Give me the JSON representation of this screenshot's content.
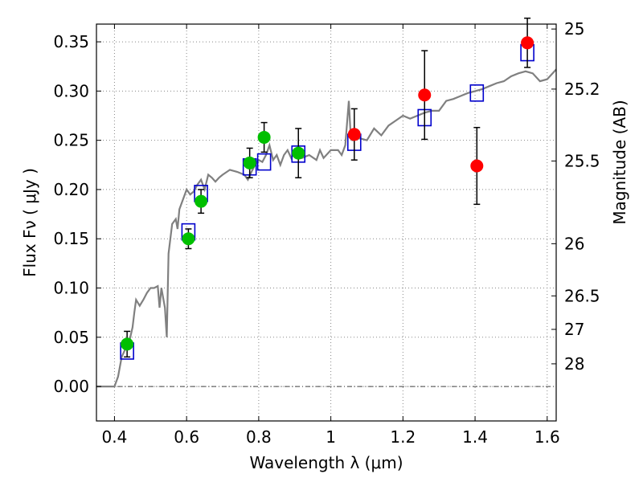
{
  "chart_data": {
    "type": "scatter",
    "xlabel": "Wavelength  λ (μm)",
    "ylabel": "Flux  Fν  ( μJy )",
    "y2label": "Magnitude (AB)",
    "xlim": [
      0.35,
      1.625
    ],
    "ylim": [
      -0.035,
      0.368
    ],
    "grid": true,
    "x_ticks": [
      0.4,
      0.6,
      0.8,
      1.0,
      1.2,
      1.4,
      1.6
    ],
    "x_tick_labels": [
      "0.4",
      "0.6",
      "0.8",
      "1",
      "1.2",
      "1.4",
      "1.6"
    ],
    "y_ticks": [
      0.0,
      0.05,
      0.1,
      0.15,
      0.2,
      0.25,
      0.3,
      0.35
    ],
    "y_tick_labels": [
      "0.00",
      "0.05",
      "0.10",
      "0.15",
      "0.20",
      "0.25",
      "0.30",
      "0.35"
    ],
    "y2_ticks": [
      {
        "flux": 0.363,
        "label": "25"
      },
      {
        "flux": 0.302,
        "label": "25.2"
      },
      {
        "flux": 0.229,
        "label": "25.5"
      },
      {
        "flux": 0.145,
        "label": "26"
      },
      {
        "flux": 0.092,
        "label": "26.5"
      },
      {
        "flux": 0.058,
        "label": "27"
      },
      {
        "flux": 0.023,
        "label": "28"
      }
    ],
    "model_sed": [
      [
        0.35,
        0.0
      ],
      [
        0.4,
        0.0
      ],
      [
        0.41,
        0.01
      ],
      [
        0.42,
        0.03
      ],
      [
        0.43,
        0.038
      ],
      [
        0.44,
        0.044
      ],
      [
        0.45,
        0.06
      ],
      [
        0.455,
        0.075
      ],
      [
        0.46,
        0.088
      ],
      [
        0.47,
        0.082
      ],
      [
        0.48,
        0.088
      ],
      [
        0.49,
        0.095
      ],
      [
        0.5,
        0.1
      ],
      [
        0.51,
        0.1
      ],
      [
        0.52,
        0.102
      ],
      [
        0.525,
        0.08
      ],
      [
        0.53,
        0.1
      ],
      [
        0.535,
        0.09
      ],
      [
        0.54,
        0.08
      ],
      [
        0.545,
        0.05
      ],
      [
        0.55,
        0.135
      ],
      [
        0.56,
        0.165
      ],
      [
        0.57,
        0.17
      ],
      [
        0.575,
        0.16
      ],
      [
        0.58,
        0.18
      ],
      [
        0.59,
        0.19
      ],
      [
        0.6,
        0.2
      ],
      [
        0.61,
        0.195
      ],
      [
        0.62,
        0.198
      ],
      [
        0.63,
        0.205
      ],
      [
        0.64,
        0.21
      ],
      [
        0.65,
        0.2
      ],
      [
        0.66,
        0.215
      ],
      [
        0.67,
        0.212
      ],
      [
        0.68,
        0.208
      ],
      [
        0.69,
        0.212
      ],
      [
        0.7,
        0.215
      ],
      [
        0.72,
        0.22
      ],
      [
        0.74,
        0.218
      ],
      [
        0.76,
        0.215
      ],
      [
        0.77,
        0.21
      ],
      [
        0.78,
        0.218
      ],
      [
        0.79,
        0.225
      ],
      [
        0.8,
        0.23
      ],
      [
        0.81,
        0.228
      ],
      [
        0.82,
        0.235
      ],
      [
        0.83,
        0.245
      ],
      [
        0.84,
        0.23
      ],
      [
        0.85,
        0.235
      ],
      [
        0.86,
        0.225
      ],
      [
        0.87,
        0.235
      ],
      [
        0.88,
        0.24
      ],
      [
        0.89,
        0.232
      ],
      [
        0.9,
        0.238
      ],
      [
        0.92,
        0.232
      ],
      [
        0.94,
        0.235
      ],
      [
        0.96,
        0.23
      ],
      [
        0.97,
        0.24
      ],
      [
        0.98,
        0.232
      ],
      [
        1.0,
        0.24
      ],
      [
        1.02,
        0.24
      ],
      [
        1.03,
        0.235
      ],
      [
        1.04,
        0.245
      ],
      [
        1.05,
        0.29
      ],
      [
        1.055,
        0.255
      ],
      [
        1.06,
        0.25
      ],
      [
        1.08,
        0.252
      ],
      [
        1.1,
        0.25
      ],
      [
        1.12,
        0.262
      ],
      [
        1.14,
        0.255
      ],
      [
        1.16,
        0.265
      ],
      [
        1.18,
        0.27
      ],
      [
        1.2,
        0.275
      ],
      [
        1.22,
        0.272
      ],
      [
        1.24,
        0.275
      ],
      [
        1.26,
        0.278
      ],
      [
        1.28,
        0.28
      ],
      [
        1.3,
        0.28
      ],
      [
        1.32,
        0.29
      ],
      [
        1.34,
        0.292
      ],
      [
        1.36,
        0.295
      ],
      [
        1.38,
        0.298
      ],
      [
        1.4,
        0.3
      ],
      [
        1.42,
        0.302
      ],
      [
        1.44,
        0.305
      ],
      [
        1.46,
        0.308
      ],
      [
        1.48,
        0.31
      ],
      [
        1.5,
        0.315
      ],
      [
        1.52,
        0.318
      ],
      [
        1.54,
        0.32
      ],
      [
        1.56,
        0.318
      ],
      [
        1.58,
        0.31
      ],
      [
        1.6,
        0.312
      ],
      [
        1.625,
        0.322
      ]
    ],
    "green_points": [
      {
        "x": 0.435,
        "y": 0.043,
        "err": 0.013
      },
      {
        "x": 0.605,
        "y": 0.15,
        "err": 0.01
      },
      {
        "x": 0.64,
        "y": 0.188,
        "err": 0.012
      },
      {
        "x": 0.775,
        "y": 0.227,
        "err": 0.015
      },
      {
        "x": 0.815,
        "y": 0.253,
        "err": 0.015
      },
      {
        "x": 0.91,
        "y": 0.237,
        "err": 0.025
      }
    ],
    "red_points": [
      {
        "x": 1.065,
        "y": 0.256,
        "err": 0.026
      },
      {
        "x": 1.26,
        "y": 0.296,
        "err": 0.045
      },
      {
        "x": 1.405,
        "y": 0.224,
        "err": 0.039
      },
      {
        "x": 1.545,
        "y": 0.349,
        "err": 0.025
      }
    ],
    "model_boxes": [
      {
        "x": 0.435,
        "y": 0.036
      },
      {
        "x": 0.605,
        "y": 0.157
      },
      {
        "x": 0.64,
        "y": 0.196
      },
      {
        "x": 0.775,
        "y": 0.223
      },
      {
        "x": 0.815,
        "y": 0.228
      },
      {
        "x": 0.91,
        "y": 0.236
      },
      {
        "x": 1.065,
        "y": 0.248
      },
      {
        "x": 1.26,
        "y": 0.273
      },
      {
        "x": 1.405,
        "y": 0.298
      },
      {
        "x": 1.545,
        "y": 0.339
      }
    ],
    "colors": {
      "model_line": "#808080",
      "green": "#00bf00",
      "red": "#ff0000",
      "box": "#0000cc",
      "grid": "#888888"
    }
  }
}
